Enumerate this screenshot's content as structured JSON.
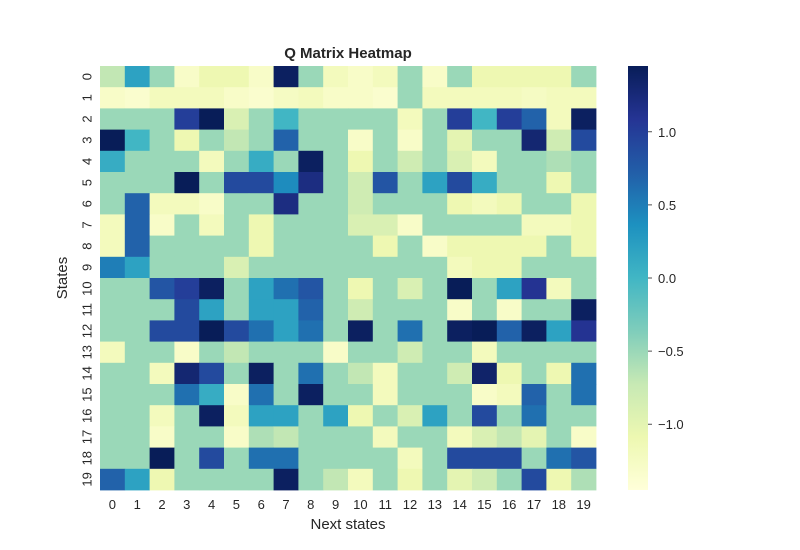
{
  "chart_data": {
    "type": "heatmap",
    "title": "Q Matrix Heatmap",
    "xlabel": "Next states",
    "ylabel": "States",
    "x_tick_labels": [
      "0",
      "1",
      "2",
      "3",
      "4",
      "5",
      "6",
      "7",
      "8",
      "9",
      "10",
      "11",
      "12",
      "13",
      "14",
      "15",
      "16",
      "17",
      "18",
      "19"
    ],
    "y_tick_labels": [
      "0",
      "1",
      "2",
      "3",
      "4",
      "5",
      "6",
      "7",
      "8",
      "9",
      "10",
      "11",
      "12",
      "13",
      "14",
      "15",
      "16",
      "17",
      "18",
      "19"
    ],
    "colormap": "YlGnBu",
    "colorbar": {
      "range": [
        -1.45,
        1.45
      ],
      "ticks": [
        -1.0,
        -0.5,
        0.0,
        0.5,
        1.0
      ],
      "tick_labels": [
        "−1.0",
        "−0.5",
        "0.0",
        "0.5",
        "1.0"
      ]
    },
    "grid": false,
    "values": [
      [
        -0.7,
        0.2,
        -0.5,
        -1.3,
        -1.1,
        -1.1,
        -1.3,
        1.4,
        -0.5,
        -1.2,
        -1.3,
        -1.2,
        -0.5,
        -1.3,
        -0.5,
        -1.1,
        -1.1,
        -1.1,
        -1.1,
        -0.5
      ],
      [
        -1.3,
        -1.35,
        -1.2,
        -1.2,
        -1.2,
        -1.3,
        -1.35,
        -1.25,
        -1.2,
        -1.3,
        -1.3,
        -1.35,
        -0.5,
        -1.2,
        -1.2,
        -1.2,
        -1.2,
        -1.25,
        -1.2,
        -1.2
      ],
      [
        -0.5,
        -0.5,
        -0.5,
        1.0,
        1.45,
        -0.9,
        -0.5,
        0.0,
        -0.5,
        -0.5,
        -0.5,
        -0.5,
        -1.2,
        -0.5,
        1.0,
        0.0,
        1.0,
        0.7,
        -1.2,
        1.4
      ],
      [
        1.45,
        0.0,
        -0.5,
        -1.1,
        -0.5,
        -0.7,
        -0.5,
        0.7,
        -0.5,
        -0.5,
        -1.3,
        -0.5,
        -1.3,
        -0.5,
        -1.0,
        -0.5,
        -0.5,
        1.3,
        -0.8,
        0.9
      ],
      [
        0.1,
        -0.5,
        -0.5,
        -0.5,
        -1.2,
        -0.5,
        0.1,
        -0.5,
        1.4,
        -0.5,
        -1.1,
        -0.5,
        -0.8,
        -0.5,
        -0.9,
        -1.2,
        -0.5,
        -0.5,
        -0.6,
        -0.5
      ],
      [
        -0.5,
        -0.5,
        -0.5,
        1.45,
        -0.5,
        0.9,
        0.9,
        0.4,
        1.2,
        -0.5,
        -0.8,
        0.8,
        -0.5,
        0.2,
        0.9,
        0.1,
        -0.5,
        -0.5,
        -1.1,
        -0.5
      ],
      [
        -0.5,
        0.7,
        -1.2,
        -1.2,
        -1.3,
        -0.5,
        -0.5,
        1.2,
        -0.5,
        -0.5,
        -0.8,
        -0.5,
        -0.5,
        -0.5,
        -1.1,
        -1.2,
        -1.1,
        -0.5,
        -0.5,
        -1.1
      ],
      [
        -1.2,
        0.7,
        -1.3,
        -0.5,
        -1.2,
        -0.5,
        -1.1,
        -0.5,
        -0.5,
        -0.5,
        -0.9,
        -0.9,
        -1.3,
        -0.5,
        -0.5,
        -0.5,
        -0.5,
        -1.2,
        -1.2,
        -1.1
      ],
      [
        -1.2,
        0.7,
        -0.5,
        -0.5,
        -0.5,
        -0.5,
        -1.1,
        -0.5,
        -0.5,
        -0.5,
        -0.5,
        -1.1,
        -0.5,
        -1.3,
        -1.1,
        -1.1,
        -1.1,
        -1.1,
        -0.5,
        -1.1
      ],
      [
        0.5,
        0.2,
        -0.5,
        -0.5,
        -0.5,
        -0.9,
        -0.5,
        -0.5,
        -0.5,
        -0.5,
        -0.5,
        -0.5,
        -0.5,
        -0.5,
        -1.2,
        -1.1,
        -1.1,
        -0.5,
        -0.5,
        -0.5
      ],
      [
        -0.5,
        -0.5,
        0.8,
        1.0,
        1.4,
        -0.5,
        0.2,
        0.6,
        0.8,
        -0.5,
        -1.1,
        -0.5,
        -0.9,
        -0.5,
        1.45,
        -0.5,
        0.2,
        1.1,
        -1.2,
        -0.5
      ],
      [
        -0.5,
        -0.5,
        -0.5,
        0.9,
        0.2,
        -0.5,
        0.2,
        0.2,
        0.7,
        -0.5,
        -0.8,
        -0.5,
        -0.5,
        -0.5,
        -1.3,
        -0.5,
        -1.3,
        -0.5,
        -0.5,
        1.4
      ],
      [
        -0.5,
        -0.5,
        0.9,
        0.9,
        1.45,
        0.9,
        0.6,
        0.2,
        0.6,
        -0.5,
        1.4,
        -0.5,
        0.6,
        -0.5,
        1.4,
        1.45,
        0.7,
        1.4,
        0.2,
        1.1
      ],
      [
        -1.2,
        -0.5,
        -0.5,
        -1.3,
        -0.5,
        -0.7,
        -0.5,
        -0.5,
        -0.5,
        -1.3,
        -0.5,
        -0.5,
        -0.8,
        -0.5,
        -0.5,
        -1.2,
        -0.5,
        -0.5,
        -0.5,
        -0.5
      ],
      [
        -0.5,
        -0.5,
        -1.2,
        1.3,
        0.9,
        -0.5,
        1.4,
        -0.5,
        0.6,
        -0.5,
        -0.7,
        -1.2,
        -0.5,
        -0.5,
        -0.8,
        1.35,
        -1.1,
        -0.5,
        -1.1,
        0.6
      ],
      [
        -0.5,
        -0.5,
        -0.5,
        0.6,
        0.1,
        -1.3,
        0.6,
        -0.5,
        1.4,
        -0.5,
        -0.5,
        -1.2,
        -0.5,
        -0.5,
        -0.5,
        -1.3,
        -1.2,
        0.7,
        -0.5,
        0.6
      ],
      [
        -0.5,
        -0.5,
        -1.2,
        -0.5,
        1.4,
        -1.2,
        0.2,
        0.2,
        -0.5,
        0.2,
        -1.1,
        -0.5,
        -0.9,
        0.2,
        -0.5,
        0.9,
        -0.5,
        0.6,
        -0.5,
        -0.5
      ],
      [
        -0.5,
        -0.5,
        -1.3,
        -0.5,
        -0.5,
        -1.3,
        -0.6,
        -0.7,
        -0.5,
        -0.5,
        -0.5,
        -1.2,
        -0.5,
        -0.5,
        -1.2,
        -0.9,
        -0.7,
        -1.0,
        -0.5,
        -1.3
      ],
      [
        -0.5,
        -0.5,
        1.45,
        -0.5,
        0.9,
        -0.5,
        0.6,
        0.6,
        -0.5,
        -0.5,
        -0.5,
        -0.5,
        -1.2,
        -0.5,
        0.9,
        0.9,
        0.9,
        -0.5,
        0.6,
        0.8
      ],
      [
        0.7,
        0.2,
        -1.1,
        -0.5,
        -0.5,
        -0.5,
        -0.5,
        1.4,
        -0.5,
        -0.7,
        -1.2,
        -0.5,
        -1.1,
        -0.5,
        -1.0,
        -0.8,
        -0.5,
        0.9,
        -1.1,
        -0.6
      ]
    ]
  }
}
